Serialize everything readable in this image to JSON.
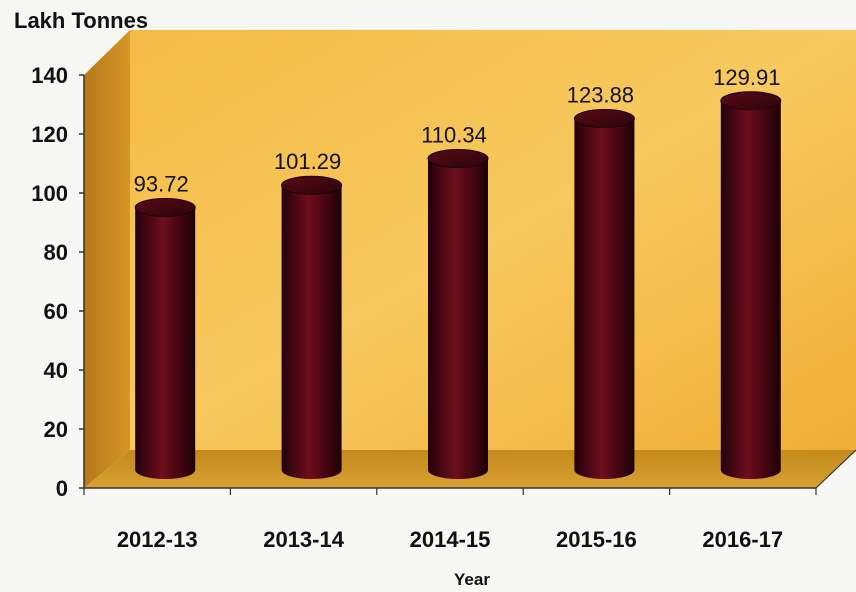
{
  "chart_data": {
    "type": "bar",
    "categories": [
      "2012-13",
      "2013-14",
      "2014-15",
      "2015-16",
      "2016-17"
    ],
    "values": [
      93.72,
      101.29,
      110.34,
      123.88,
      129.91
    ],
    "data_labels": [
      "93.72",
      "101.29",
      "110.34",
      "123.88",
      "129.91"
    ],
    "title": "",
    "xlabel": "Year",
    "ylabel": "Lakh Tonnes",
    "ylim": [
      0,
      140
    ],
    "yticks": [
      0,
      20,
      40,
      60,
      80,
      100,
      120,
      140
    ],
    "style": "3d-cylinder",
    "grid": false,
    "colors": {
      "wall": "#f1b13b",
      "wall_light": "#f6c457",
      "side_wall": "#c98a1d",
      "floor": "#c8921f",
      "bar_dark": "#2a0308",
      "bar_mid": "#6a0c18",
      "bar_top": "#3a0710"
    }
  }
}
